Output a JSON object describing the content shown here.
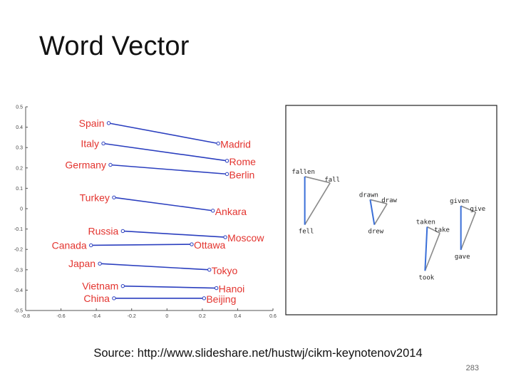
{
  "slide": {
    "title": "Word Vector",
    "source": "Source: http://www.slideshare.net/hustwj/cikm-keynotenov2014",
    "page_number": "283"
  },
  "colors": {
    "label_red": "#e3342f",
    "line_blue": "#2b3fbf",
    "axis_gray": "#555555"
  },
  "chart_data": [
    {
      "type": "scatter",
      "title": "",
      "xlabel": "",
      "ylabel": "",
      "xlim": [
        -0.8,
        0.6
      ],
      "ylim": [
        -0.5,
        0.5
      ],
      "x_ticks": [
        "-0.8",
        "-0.6",
        "-0.4",
        "-0.2",
        "0",
        "0.2",
        "0.4",
        "0.6"
      ],
      "y_ticks": [
        "0.5",
        "0.4",
        "0.3",
        "0.2",
        "0.1",
        "0",
        "-0.1",
        "-0.2",
        "-0.3",
        "-0.4",
        "-0.5"
      ],
      "grid": false,
      "pairs": [
        {
          "country": "Spain",
          "capital": "Madrid",
          "from": [
            -0.33,
            0.42
          ],
          "to": [
            0.29,
            0.32
          ]
        },
        {
          "country": "Italy",
          "capital": "Rome",
          "from": [
            -0.36,
            0.32
          ],
          "to": [
            0.34,
            0.235
          ]
        },
        {
          "country": "Germany",
          "capital": "Berlin",
          "from": [
            -0.32,
            0.215
          ],
          "to": [
            0.34,
            0.17
          ]
        },
        {
          "country": "Turkey",
          "capital": "Ankara",
          "from": [
            -0.3,
            0.055
          ],
          "to": [
            0.26,
            -0.01
          ]
        },
        {
          "country": "Russia",
          "capital": "Moscow",
          "from": [
            -0.25,
            -0.11
          ],
          "to": [
            0.33,
            -0.14
          ]
        },
        {
          "country": "Canada",
          "capital": "Ottawa",
          "from": [
            -0.43,
            -0.18
          ],
          "to": [
            0.14,
            -0.175
          ]
        },
        {
          "country": "Japan",
          "capital": "Tokyo",
          "from": [
            -0.38,
            -0.27
          ],
          "to": [
            0.24,
            -0.3
          ]
        },
        {
          "country": "Vietnam",
          "capital": "Hanoi",
          "from": [
            -0.25,
            -0.38
          ],
          "to": [
            0.28,
            -0.39
          ]
        },
        {
          "country": "China",
          "capital": "Beijing",
          "from": [
            -0.3,
            -0.44
          ],
          "to": [
            0.21,
            -0.44
          ]
        }
      ]
    },
    {
      "type": "scatter",
      "title": "",
      "groups": [
        {
          "words": [
            "fallen",
            "fall",
            "fell"
          ],
          "points": [
            [
              0.09,
              0.34
            ],
            [
              0.21,
              0.37
            ],
            [
              0.09,
              0.57
            ]
          ]
        },
        {
          "words": [
            "drawn",
            "draw",
            "drew"
          ],
          "points": [
            [
              0.4,
              0.45
            ],
            [
              0.48,
              0.47
            ],
            [
              0.42,
              0.57
            ]
          ]
        },
        {
          "words": [
            "taken",
            "take",
            "took"
          ],
          "points": [
            [
              0.67,
              0.58
            ],
            [
              0.73,
              0.61
            ],
            [
              0.66,
              0.79
            ]
          ]
        },
        {
          "words": [
            "given",
            "give",
            "gave"
          ],
          "points": [
            [
              0.83,
              0.48
            ],
            [
              0.9,
              0.51
            ],
            [
              0.83,
              0.69
            ]
          ]
        }
      ]
    }
  ]
}
